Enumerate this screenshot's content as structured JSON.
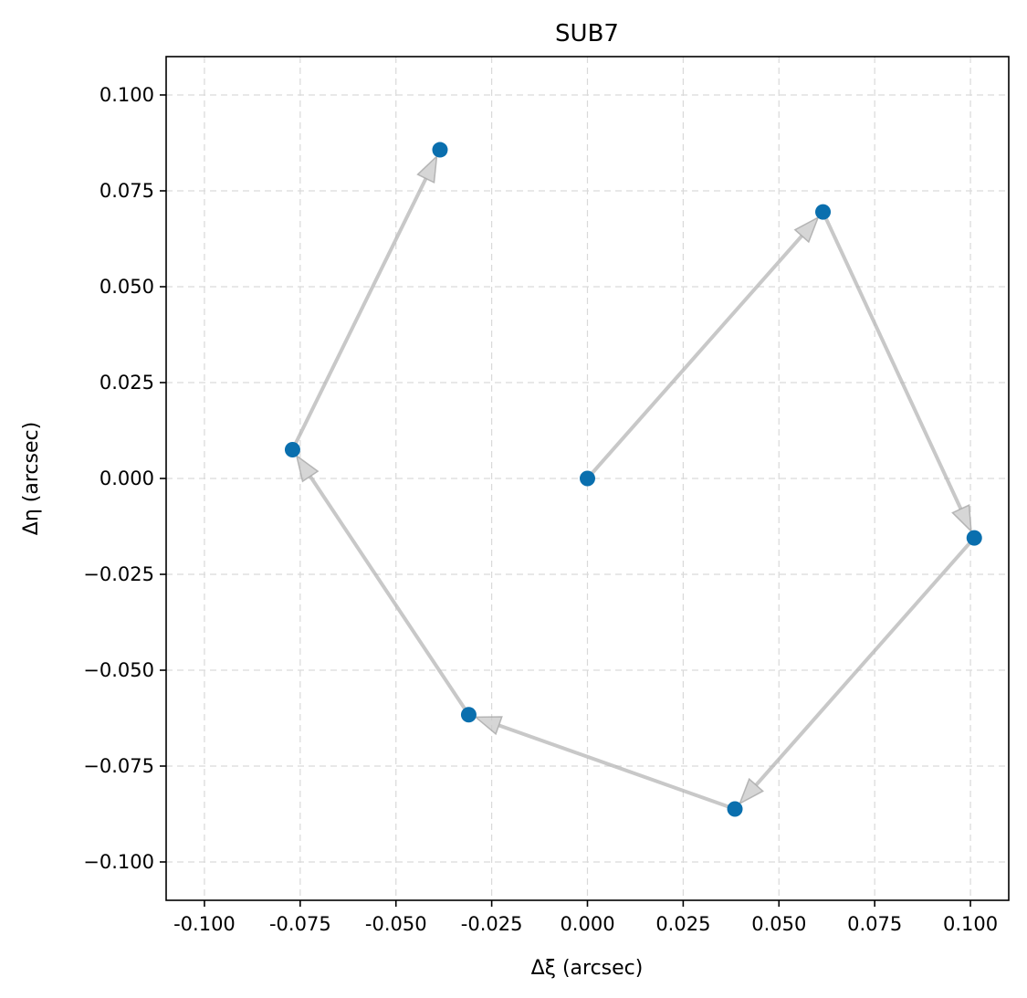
{
  "chart_data": {
    "type": "scatter",
    "title": "SUB7",
    "xlabel": "Δξ (arcsec)",
    "ylabel": "Δη (arcsec)",
    "xlim": [
      -0.11,
      0.11
    ],
    "ylim": [
      -0.11,
      0.11
    ],
    "grid": true,
    "x_ticks": [
      -0.1,
      -0.075,
      -0.05,
      -0.025,
      0.0,
      0.025,
      0.05,
      0.075,
      0.1
    ],
    "x_tick_labels": [
      "-0.100",
      "-0.075",
      "-0.050",
      "-0.025",
      "0.000",
      "0.025",
      "0.050",
      "0.075",
      "0.100"
    ],
    "y_ticks": [
      -0.1,
      -0.075,
      -0.05,
      -0.025,
      0.0,
      0.025,
      0.05,
      0.075,
      0.1
    ],
    "y_tick_labels": [
      "−0.100",
      "−0.075",
      "−0.050",
      "−0.025",
      "0.000",
      "0.025",
      "0.050",
      "0.075",
      "0.100"
    ],
    "points": [
      {
        "x": 0.0,
        "y": 0.0
      },
      {
        "x": 0.0615,
        "y": 0.0695
      },
      {
        "x": 0.101,
        "y": -0.0155
      },
      {
        "x": 0.0385,
        "y": -0.0862
      },
      {
        "x": -0.031,
        "y": -0.0616
      },
      {
        "x": -0.077,
        "y": 0.0075
      },
      {
        "x": -0.0385,
        "y": 0.0857
      }
    ],
    "point_color": "#0a6fae",
    "arrow_color": "#c0c0c0"
  }
}
